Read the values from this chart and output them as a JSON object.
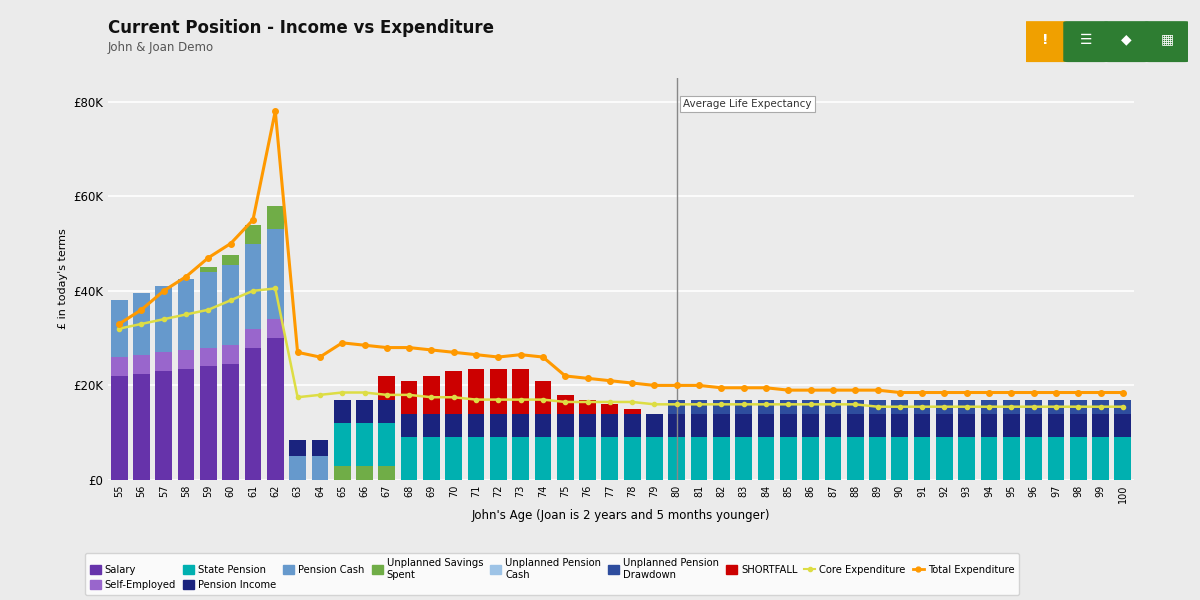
{
  "title": "Current Position - Income vs Expenditure",
  "subtitle": "John & Joan Demo",
  "xlabel": "John's Age (Joan is 2 years and 5 months younger)",
  "ylabel": "£ in today's terms",
  "ages": [
    55,
    56,
    57,
    58,
    59,
    60,
    61,
    62,
    63,
    64,
    65,
    66,
    67,
    68,
    69,
    70,
    71,
    72,
    73,
    74,
    75,
    76,
    77,
    78,
    79,
    80,
    81,
    82,
    83,
    84,
    85,
    86,
    87,
    88,
    89,
    90,
    91,
    92,
    93,
    94,
    95,
    96,
    97,
    98,
    99,
    100
  ],
  "avg_life_expectancy_age": 80,
  "yticks": [
    0,
    20000,
    40000,
    60000,
    80000
  ],
  "ytick_labels": [
    "£0",
    "£20K",
    "£40K",
    "£60K",
    "£80K"
  ],
  "background_color": "#ebebeb",
  "plot_bg_color": "#ebebeb",
  "colors": {
    "salary": "#6633aa",
    "self_employed": "#9966cc",
    "state_pension": "#00b0b0",
    "pension_income": "#1a237e",
    "pension_cash": "#6699cc",
    "unplanned_savings": "#70ad47",
    "unplanned_pension_cash": "#9dc3e6",
    "unplanned_pension_drawdown": "#2e4d9e",
    "shortfall": "#cc0000",
    "core_expenditure": "#dddd44",
    "total_expenditure": "#ff9900",
    "vline": "#888888"
  },
  "salary": [
    22000,
    22500,
    23000,
    23500,
    24000,
    24500,
    28000,
    30000,
    0,
    0,
    0,
    0,
    0,
    0,
    0,
    0,
    0,
    0,
    0,
    0,
    0,
    0,
    0,
    0,
    0,
    0,
    0,
    0,
    0,
    0,
    0,
    0,
    0,
    0,
    0,
    0,
    0,
    0,
    0,
    0,
    0,
    0,
    0,
    0,
    0,
    0
  ],
  "self_employed": [
    4000,
    4000,
    4000,
    4000,
    4000,
    4000,
    4000,
    4000,
    0,
    0,
    0,
    0,
    0,
    0,
    0,
    0,
    0,
    0,
    0,
    0,
    0,
    0,
    0,
    0,
    0,
    0,
    0,
    0,
    0,
    0,
    0,
    0,
    0,
    0,
    0,
    0,
    0,
    0,
    0,
    0,
    0,
    0,
    0,
    0,
    0,
    0
  ],
  "pension_cash": [
    12000,
    13000,
    14000,
    15000,
    16000,
    17000,
    18000,
    19000,
    5000,
    5000,
    0,
    0,
    0,
    0,
    0,
    0,
    0,
    0,
    0,
    0,
    0,
    0,
    0,
    0,
    0,
    0,
    0,
    0,
    0,
    0,
    0,
    0,
    0,
    0,
    0,
    0,
    0,
    0,
    0,
    0,
    0,
    0,
    0,
    0,
    0,
    0
  ],
  "unplanned_savings": [
    0,
    0,
    0,
    0,
    1000,
    2000,
    4000,
    5000,
    0,
    0,
    3000,
    3000,
    3000,
    0,
    0,
    0,
    0,
    0,
    0,
    0,
    0,
    0,
    0,
    0,
    0,
    0,
    0,
    0,
    0,
    0,
    0,
    0,
    0,
    0,
    0,
    0,
    0,
    0,
    0,
    0,
    0,
    0,
    0,
    0,
    0,
    0
  ],
  "state_pension": [
    0,
    0,
    0,
    0,
    0,
    0,
    0,
    0,
    0,
    0,
    9000,
    9000,
    9000,
    9000,
    9000,
    9000,
    9000,
    9000,
    9000,
    9000,
    9000,
    9000,
    9000,
    9000,
    9000,
    9000,
    9000,
    9000,
    9000,
    9000,
    9000,
    9000,
    9000,
    9000,
    9000,
    9000,
    9000,
    9000,
    9000,
    9000,
    9000,
    9000,
    9000,
    9000,
    9000,
    9000
  ],
  "pension_income": [
    0,
    0,
    0,
    0,
    0,
    0,
    0,
    0,
    3500,
    3500,
    5000,
    5000,
    5000,
    5000,
    5000,
    5000,
    5000,
    5000,
    5000,
    5000,
    5000,
    5000,
    5000,
    5000,
    5000,
    5000,
    5000,
    5000,
    5000,
    5000,
    5000,
    5000,
    5000,
    5000,
    5000,
    5000,
    5000,
    5000,
    5000,
    5000,
    5000,
    5000,
    5000,
    5000,
    5000,
    5000
  ],
  "unplanned_pension_cash": [
    0,
    0,
    0,
    0,
    0,
    0,
    0,
    0,
    0,
    0,
    0,
    0,
    0,
    0,
    0,
    0,
    0,
    0,
    0,
    0,
    0,
    0,
    0,
    0,
    0,
    0,
    0,
    0,
    0,
    0,
    0,
    0,
    0,
    0,
    0,
    0,
    0,
    0,
    0,
    0,
    0,
    0,
    0,
    0,
    0,
    0
  ],
  "unplanned_pension_drawdown": [
    0,
    0,
    0,
    0,
    0,
    0,
    0,
    0,
    0,
    0,
    0,
    0,
    0,
    0,
    0,
    0,
    0,
    0,
    0,
    0,
    0,
    0,
    0,
    0,
    0,
    3000,
    3000,
    3000,
    3000,
    3000,
    3000,
    3000,
    3000,
    3000,
    3000,
    3000,
    3000,
    3000,
    3000,
    3000,
    3000,
    3000,
    3000,
    3000,
    3000,
    3000
  ],
  "shortfall": [
    0,
    0,
    0,
    0,
    0,
    0,
    0,
    0,
    0,
    0,
    0,
    0,
    5000,
    7000,
    8000,
    9000,
    9500,
    9500,
    9500,
    7000,
    4000,
    3000,
    2000,
    1000,
    0,
    0,
    0,
    0,
    0,
    0,
    0,
    0,
    0,
    0,
    0,
    0,
    0,
    0,
    0,
    0,
    0,
    0,
    0,
    0,
    0,
    0
  ],
  "core_expenditure": [
    32000,
    33000,
    34000,
    35000,
    36000,
    38000,
    40000,
    40500,
    17500,
    18000,
    18500,
    18500,
    18000,
    18000,
    17500,
    17500,
    17000,
    17000,
    17000,
    17000,
    16500,
    16500,
    16500,
    16500,
    16000,
    16000,
    16000,
    16000,
    16000,
    16000,
    16000,
    16000,
    16000,
    16000,
    15500,
    15500,
    15500,
    15500,
    15500,
    15500,
    15500,
    15500,
    15500,
    15500,
    15500,
    15500
  ],
  "total_expenditure": [
    33000,
    36000,
    40000,
    43000,
    47000,
    50000,
    55000,
    78000,
    27000,
    26000,
    29000,
    28500,
    28000,
    28000,
    27500,
    27000,
    26500,
    26000,
    26500,
    26000,
    22000,
    21500,
    21000,
    20500,
    20000,
    20000,
    20000,
    19500,
    19500,
    19500,
    19000,
    19000,
    19000,
    19000,
    19000,
    18500,
    18500,
    18500,
    18500,
    18500,
    18500,
    18500,
    18500,
    18500,
    18500,
    18500
  ]
}
